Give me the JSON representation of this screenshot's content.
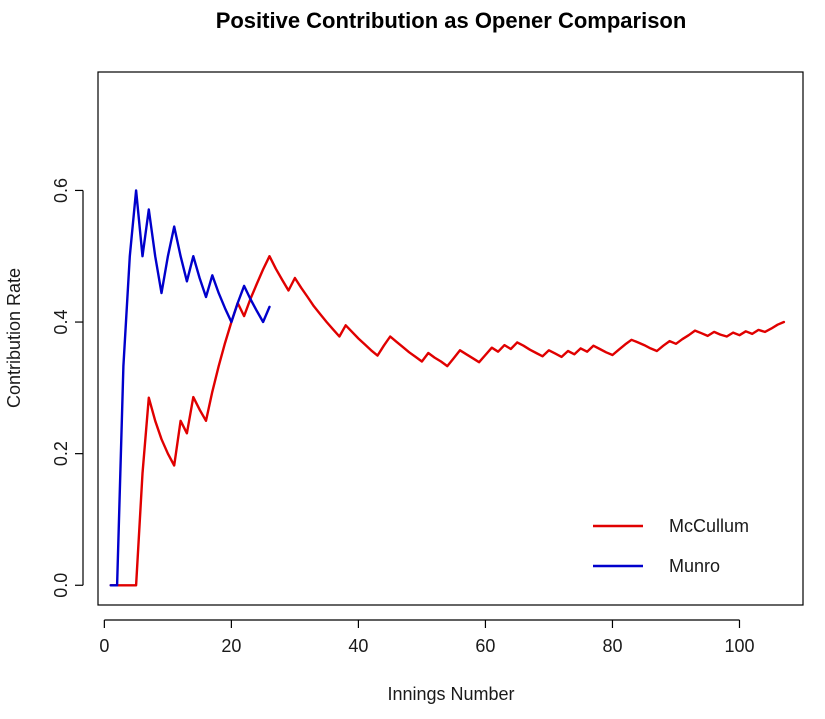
{
  "chart_data": {
    "type": "line",
    "title": "Positive Contribution as Opener Comparison",
    "xlabel": "Innings Number",
    "ylabel": "Contribution Rate",
    "xlim": [
      -1,
      110
    ],
    "ylim": [
      -0.03,
      0.78
    ],
    "x_ticks": [
      0,
      20,
      40,
      60,
      80,
      100
    ],
    "y_ticks": [
      0.0,
      0.2,
      0.4,
      0.6
    ],
    "x_tick_labels": [
      "0",
      "20",
      "40",
      "60",
      "80",
      "100"
    ],
    "y_tick_labels": [
      "0.0",
      "0.2",
      "0.4",
      "0.6"
    ],
    "grid": false,
    "legend_position": "bottom-right",
    "series": [
      {
        "name": "McCullum",
        "color": "#e00000",
        "points": [
          [
            1,
            0.0
          ],
          [
            2,
            0.0
          ],
          [
            3,
            0.0
          ],
          [
            4,
            0.0
          ],
          [
            5,
            0.0
          ],
          [
            6,
            0.17
          ],
          [
            7,
            0.285
          ],
          [
            8,
            0.25
          ],
          [
            9,
            0.222
          ],
          [
            10,
            0.2
          ],
          [
            11,
            0.182
          ],
          [
            12,
            0.25
          ],
          [
            13,
            0.231
          ],
          [
            14,
            0.286
          ],
          [
            15,
            0.267
          ],
          [
            16,
            0.25
          ],
          [
            17,
            0.294
          ],
          [
            18,
            0.333
          ],
          [
            19,
            0.368
          ],
          [
            20,
            0.4
          ],
          [
            21,
            0.429
          ],
          [
            22,
            0.409
          ],
          [
            23,
            0.435
          ],
          [
            24,
            0.458
          ],
          [
            25,
            0.48
          ],
          [
            26,
            0.5
          ],
          [
            27,
            0.481
          ],
          [
            28,
            0.464
          ],
          [
            29,
            0.448
          ],
          [
            30,
            0.467
          ],
          [
            31,
            0.452
          ],
          [
            32,
            0.438
          ],
          [
            33,
            0.424
          ],
          [
            34,
            0.412
          ],
          [
            35,
            0.4
          ],
          [
            36,
            0.389
          ],
          [
            37,
            0.378
          ],
          [
            38,
            0.395
          ],
          [
            39,
            0.385
          ],
          [
            40,
            0.375
          ],
          [
            41,
            0.366
          ],
          [
            42,
            0.357
          ],
          [
            43,
            0.349
          ],
          [
            44,
            0.364
          ],
          [
            45,
            0.378
          ],
          [
            46,
            0.37
          ],
          [
            47,
            0.362
          ],
          [
            48,
            0.354
          ],
          [
            49,
            0.347
          ],
          [
            50,
            0.34
          ],
          [
            51,
            0.353
          ],
          [
            52,
            0.346
          ],
          [
            53,
            0.34
          ],
          [
            54,
            0.333
          ],
          [
            55,
            0.345
          ],
          [
            56,
            0.357
          ],
          [
            57,
            0.351
          ],
          [
            58,
            0.345
          ],
          [
            59,
            0.339
          ],
          [
            60,
            0.35
          ],
          [
            61,
            0.361
          ],
          [
            62,
            0.355
          ],
          [
            63,
            0.365
          ],
          [
            64,
            0.359
          ],
          [
            65,
            0.369
          ],
          [
            66,
            0.364
          ],
          [
            67,
            0.358
          ],
          [
            68,
            0.353
          ],
          [
            69,
            0.348
          ],
          [
            70,
            0.357
          ],
          [
            71,
            0.352
          ],
          [
            72,
            0.347
          ],
          [
            73,
            0.356
          ],
          [
            74,
            0.351
          ],
          [
            75,
            0.36
          ],
          [
            76,
            0.355
          ],
          [
            77,
            0.364
          ],
          [
            78,
            0.359
          ],
          [
            79,
            0.354
          ],
          [
            80,
            0.35
          ],
          [
            81,
            0.358
          ],
          [
            82,
            0.366
          ],
          [
            83,
            0.373
          ],
          [
            84,
            0.369
          ],
          [
            85,
            0.365
          ],
          [
            86,
            0.36
          ],
          [
            87,
            0.356
          ],
          [
            88,
            0.364
          ],
          [
            89,
            0.371
          ],
          [
            90,
            0.367
          ],
          [
            91,
            0.374
          ],
          [
            92,
            0.38
          ],
          [
            93,
            0.387
          ],
          [
            94,
            0.383
          ],
          [
            95,
            0.379
          ],
          [
            96,
            0.385
          ],
          [
            97,
            0.381
          ],
          [
            98,
            0.378
          ],
          [
            99,
            0.384
          ],
          [
            100,
            0.38
          ],
          [
            101,
            0.386
          ],
          [
            102,
            0.382
          ],
          [
            103,
            0.388
          ],
          [
            104,
            0.385
          ],
          [
            105,
            0.39
          ],
          [
            106,
            0.396
          ],
          [
            107,
            0.4
          ]
        ]
      },
      {
        "name": "Munro",
        "color": "#0000cc",
        "points": [
          [
            1,
            0.0
          ],
          [
            2,
            0.0
          ],
          [
            3,
            0.333
          ],
          [
            4,
            0.5
          ],
          [
            5,
            0.6
          ],
          [
            6,
            0.5
          ],
          [
            7,
            0.571
          ],
          [
            8,
            0.5
          ],
          [
            9,
            0.444
          ],
          [
            10,
            0.5
          ],
          [
            11,
            0.545
          ],
          [
            12,
            0.5
          ],
          [
            13,
            0.462
          ],
          [
            14,
            0.5
          ],
          [
            15,
            0.467
          ],
          [
            16,
            0.438
          ],
          [
            17,
            0.471
          ],
          [
            18,
            0.444
          ],
          [
            19,
            0.421
          ],
          [
            20,
            0.4
          ],
          [
            21,
            0.429
          ],
          [
            22,
            0.455
          ],
          [
            23,
            0.435
          ],
          [
            24,
            0.417
          ],
          [
            25,
            0.4
          ],
          [
            26,
            0.423
          ]
        ]
      }
    ]
  }
}
